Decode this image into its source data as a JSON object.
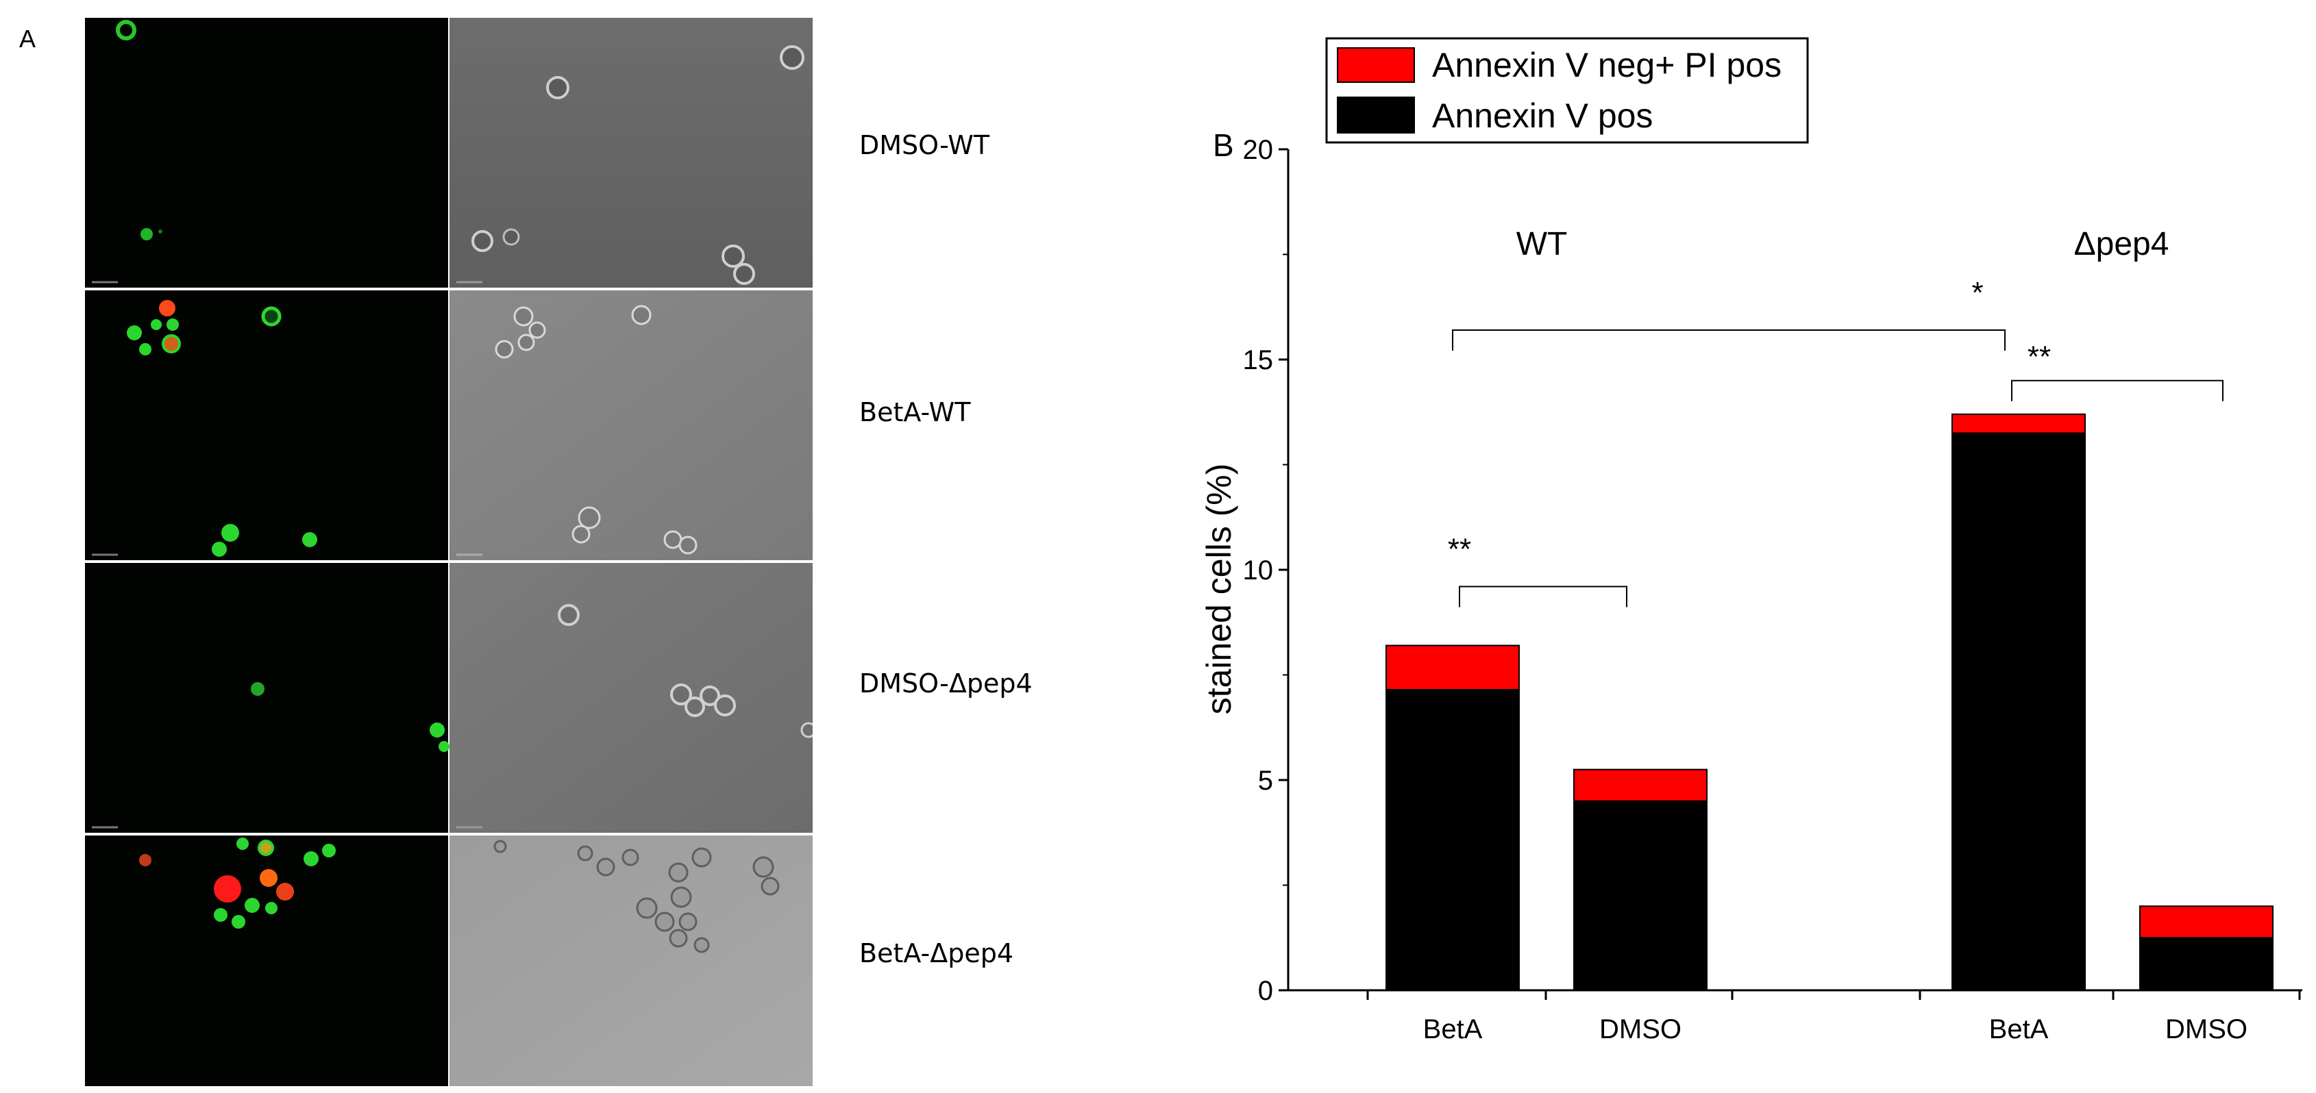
{
  "panel_a": {
    "letter": "A",
    "rows": [
      {
        "label": "DMSO-WT"
      },
      {
        "label": "BetA-WT"
      },
      {
        "label": "DMSO-Δpep4"
      },
      {
        "label": "BetA-Δpep4"
      }
    ]
  },
  "panel_b": {
    "letter": "B"
  },
  "chart_data": {
    "type": "bar",
    "stacked": true,
    "title": "",
    "xlabel": "",
    "ylabel": "stained cells (%)",
    "ylim": [
      0,
      20
    ],
    "yticks": [
      "0",
      "5",
      "10",
      "15",
      "20"
    ],
    "groups": [
      {
        "name": "WT",
        "categories": [
          "BetA",
          "DMSO"
        ]
      },
      {
        "name": "Δpep4",
        "categories": [
          "BetA",
          "DMSO"
        ]
      }
    ],
    "categories": [
      "BetA",
      "DMSO",
      "BetA",
      "DMSO"
    ],
    "series": [
      {
        "name": "Annexin V  pos",
        "color": "#000000",
        "values": [
          7.15,
          4.5,
          13.25,
          1.25
        ]
      },
      {
        "name": "Annexin V neg+ PI pos",
        "color": "#ff0000",
        "values": [
          1.05,
          0.75,
          0.45,
          0.75
        ]
      }
    ],
    "legend": [
      "Annexin V neg+ PI pos",
      "Annexin V  pos"
    ],
    "legend_position": "top-left",
    "annotations": [
      {
        "text": "**",
        "from": 0,
        "to": 1
      },
      {
        "text": "*",
        "from": 0,
        "to": 2
      },
      {
        "text": "**",
        "from": 2,
        "to": 3
      }
    ]
  }
}
